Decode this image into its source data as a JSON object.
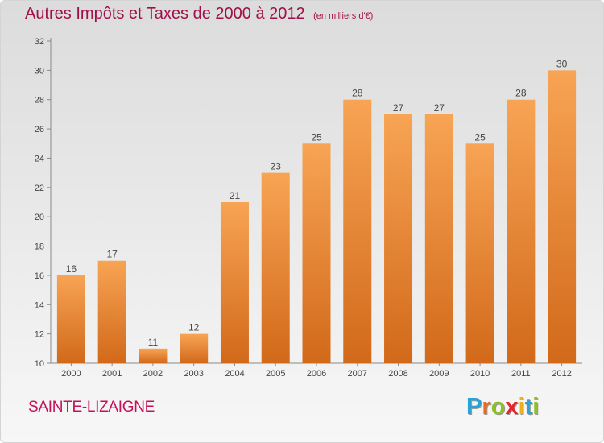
{
  "chart_data": {
    "type": "bar",
    "title": "Autres Impôts et Taxes de 2000 à 2012",
    "subtitle": "(en milliers d'€)",
    "xlabel": "",
    "ylabel": "",
    "categories": [
      "2000",
      "2001",
      "2002",
      "2003",
      "2004",
      "2005",
      "2006",
      "2007",
      "2008",
      "2009",
      "2010",
      "2011",
      "2012"
    ],
    "values": [
      16,
      17,
      11,
      12,
      21,
      23,
      25,
      28,
      27,
      27,
      25,
      28,
      30
    ],
    "ylim": [
      10,
      32
    ],
    "yticks": [
      10,
      12,
      14,
      16,
      18,
      20,
      22,
      24,
      26,
      28,
      30,
      32
    ],
    "grid": false,
    "legend": "none",
    "data_labels": true,
    "colors": {
      "bar_top": "#f7a454",
      "bar_bottom": "#d2691a",
      "title": "#a01048",
      "axis": "#8a8a8a"
    }
  },
  "footer": {
    "place": "SAINTE-LIZAIGNE",
    "brand_letters": [
      "P",
      "r",
      "o",
      "x",
      "i",
      "t",
      "i"
    ],
    "brand_colors": [
      "#29a3d6",
      "#e86a1d",
      "#8dbf2a",
      "#e3262c",
      "#e9b21a",
      "#29a3d6",
      "#8dbf2a"
    ]
  }
}
